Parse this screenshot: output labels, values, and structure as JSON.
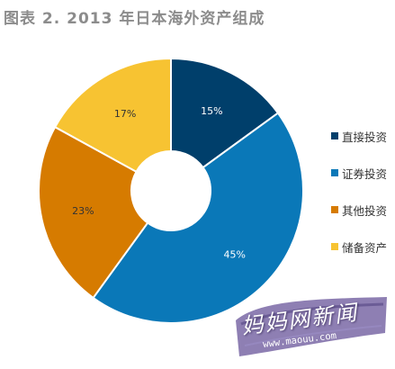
{
  "title": "图表 2. 2013 年日本海外资产组成",
  "chart_data": {
    "type": "pie",
    "title": "图表 2. 2013 年日本海外资产组成",
    "donut": true,
    "start": "12 o'clock",
    "direction": "clockwise",
    "slices": [
      {
        "label": "直接投资",
        "value": 15,
        "value_label": "15%",
        "color": "#003f6b"
      },
      {
        "label": "证券投资",
        "value": 45,
        "value_label": "45%",
        "color": "#0a78b8"
      },
      {
        "label": "其他投资",
        "value": 23,
        "value_label": "23%",
        "color": "#d67b00"
      },
      {
        "label": "储备资产",
        "value": 17,
        "value_label": "17%",
        "color": "#f7c332"
      }
    ],
    "legend": "right"
  },
  "watermark": {
    "text": "妈妈网新闻",
    "url": "www.maouu.com"
  }
}
